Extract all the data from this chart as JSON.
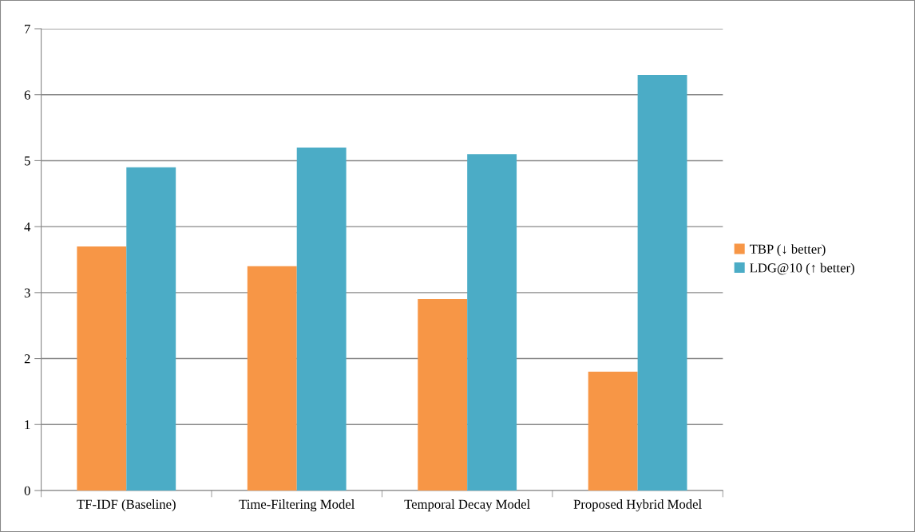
{
  "chart_data": {
    "type": "bar",
    "categories": [
      "TF-IDF (Baseline)",
      "Time-Filtering Model",
      "Temporal Decay Model",
      "Proposed Hybrid Model"
    ],
    "series": [
      {
        "name": "TBP (↓ better)",
        "color": "#f79646",
        "values": [
          3.7,
          3.4,
          2.9,
          1.8
        ]
      },
      {
        "name": "LDG@10 (↑ better)",
        "color": "#4bacc6",
        "values": [
          4.9,
          5.2,
          5.1,
          6.3
        ]
      }
    ],
    "ylim": [
      0,
      7
    ],
    "yticks": [
      0,
      1,
      2,
      3,
      4,
      5,
      6,
      7
    ],
    "grid": "y",
    "legend": "right"
  }
}
